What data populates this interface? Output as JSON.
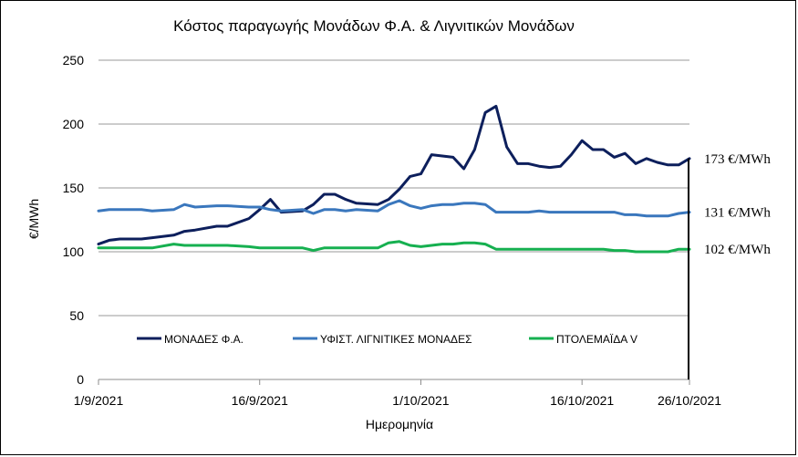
{
  "chart_data": {
    "type": "line",
    "title": "Κόστος παραγωγής Μονάδων Φ.Α. & Λιγνιτικών Μονάδων",
    "xlabel": "Ημερομηνία",
    "ylabel": "€/MWh",
    "ylim": [
      0,
      250
    ],
    "yticks": [
      0,
      50,
      100,
      150,
      200,
      250
    ],
    "xlim": [
      "2021-09-01",
      "2021-10-26"
    ],
    "xticks": [
      "1/9/2021",
      "16/9/2021",
      "1/10/2021",
      "16/10/2021",
      "26/10/2021"
    ],
    "grid": true,
    "legend": "bottom",
    "x_dates": [
      "2021-09-01",
      "2021-09-02",
      "2021-09-03",
      "2021-09-05",
      "2021-09-06",
      "2021-09-08",
      "2021-09-09",
      "2021-09-10",
      "2021-09-12",
      "2021-09-13",
      "2021-09-15",
      "2021-09-16",
      "2021-09-17",
      "2021-09-18",
      "2021-09-20",
      "2021-09-21",
      "2021-09-22",
      "2021-09-23",
      "2021-09-24",
      "2021-09-25",
      "2021-09-27",
      "2021-09-28",
      "2021-09-29",
      "2021-09-30",
      "2021-10-01",
      "2021-10-02",
      "2021-10-03",
      "2021-10-04",
      "2021-10-05",
      "2021-10-06",
      "2021-10-07",
      "2021-10-08",
      "2021-10-09",
      "2021-10-10",
      "2021-10-11",
      "2021-10-12",
      "2021-10-13",
      "2021-10-14",
      "2021-10-15",
      "2021-10-16",
      "2021-10-17",
      "2021-10-18",
      "2021-10-19",
      "2021-10-20",
      "2021-10-21",
      "2021-10-22",
      "2021-10-23",
      "2021-10-24",
      "2021-10-25",
      "2021-10-26"
    ],
    "series": [
      {
        "name": "ΜΟΝΑΔΕΣ Φ.Α.",
        "color": "#0d1f5c",
        "values": [
          106,
          109,
          110,
          110,
          111,
          113,
          116,
          117,
          120,
          120,
          126,
          133,
          141,
          131,
          132,
          137,
          145,
          145,
          141,
          138,
          137,
          141,
          149,
          159,
          161,
          176,
          175,
          174,
          165,
          180,
          209,
          214,
          182,
          169,
          169,
          167,
          166,
          167,
          176,
          187,
          180,
          180,
          174,
          177,
          169,
          173,
          170,
          168,
          168,
          173
        ]
      },
      {
        "name": "ΥΦΙΣΤ. ΛΙΓΝΙΤΙΚΕΣ ΜΟΝΑΔΕΣ",
        "color": "#3a77bd",
        "values": [
          132,
          133,
          133,
          133,
          132,
          133,
          137,
          135,
          136,
          136,
          135,
          135,
          133,
          132,
          133,
          130,
          133,
          133,
          132,
          133,
          132,
          137,
          140,
          136,
          134,
          136,
          137,
          137,
          138,
          138,
          137,
          131,
          131,
          131,
          131,
          132,
          131,
          131,
          131,
          131,
          131,
          131,
          131,
          129,
          129,
          128,
          128,
          128,
          130,
          131
        ]
      },
      {
        "name": "ΠΤΟΛΕΜΑΪΔΑ V",
        "color": "#16b050",
        "values": [
          103,
          103,
          103,
          103,
          103,
          106,
          105,
          105,
          105,
          105,
          104,
          103,
          103,
          103,
          103,
          101,
          103,
          103,
          103,
          103,
          103,
          107,
          108,
          105,
          104,
          105,
          106,
          106,
          107,
          107,
          106,
          102,
          102,
          102,
          102,
          102,
          102,
          102,
          102,
          102,
          102,
          102,
          101,
          101,
          100,
          100,
          100,
          100,
          102,
          102
        ]
      }
    ],
    "end_labels": [
      "173 €/MWh",
      "131 €/MWh",
      "102 €/MWh"
    ]
  }
}
